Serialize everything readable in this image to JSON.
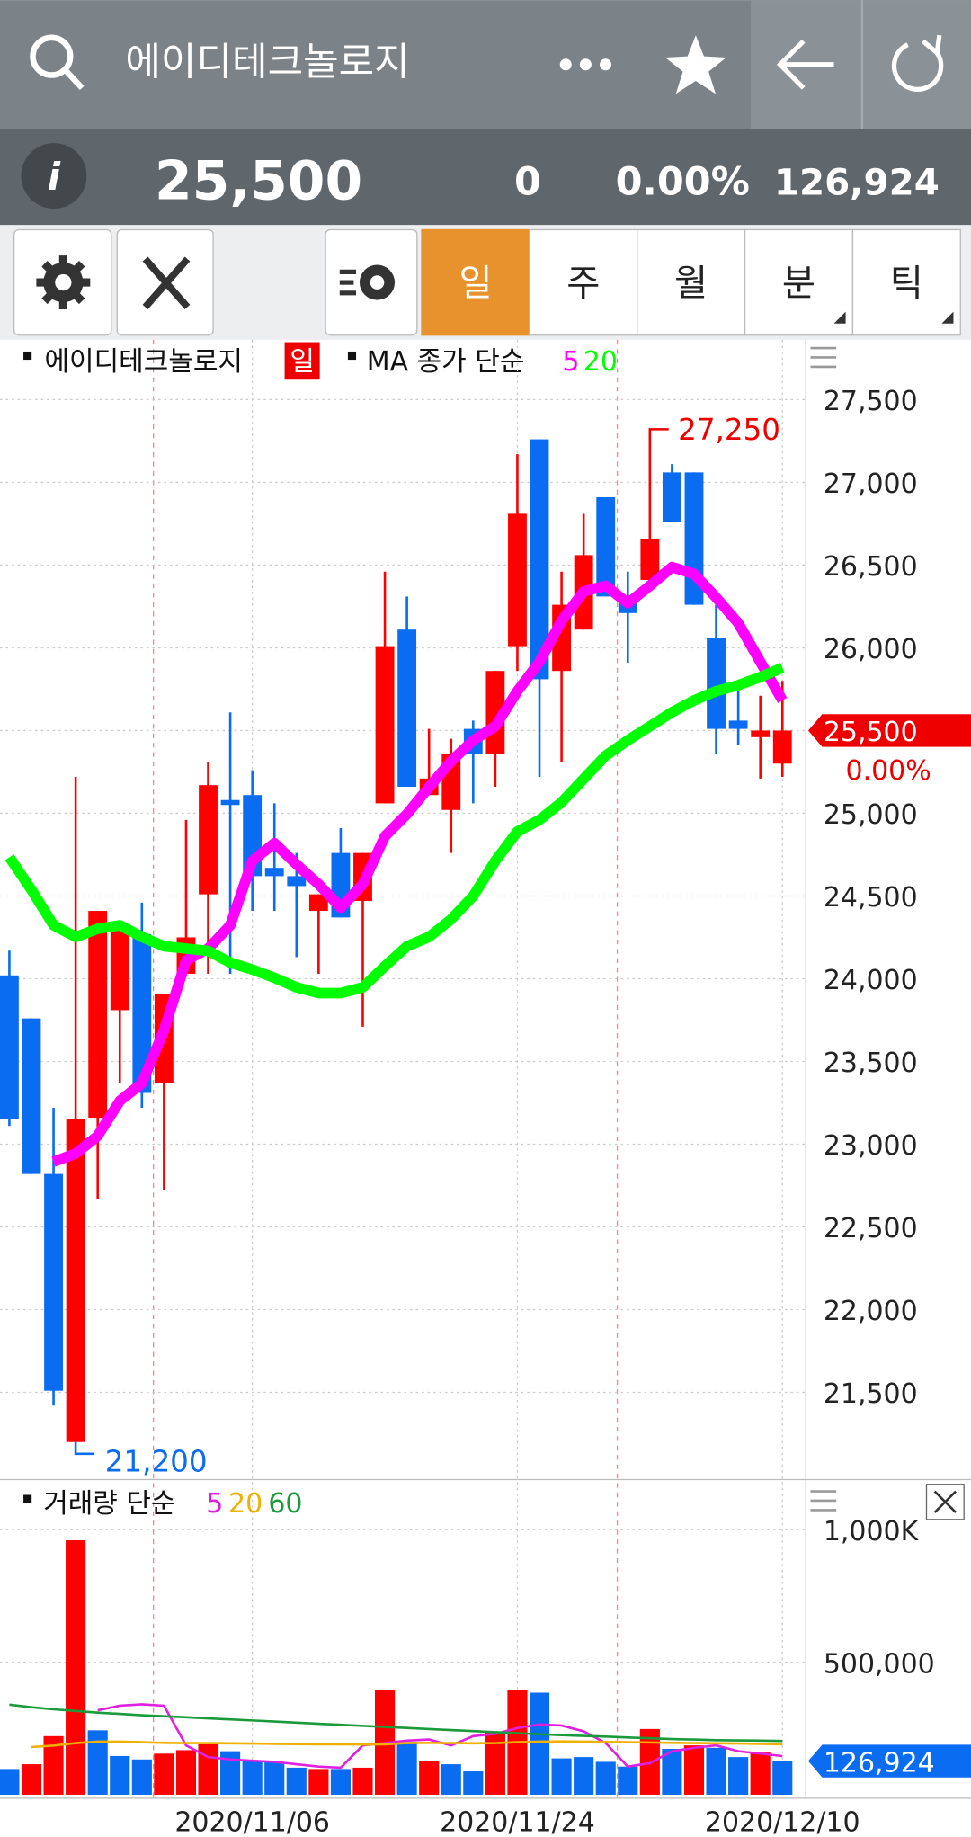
{
  "header": {
    "title": "에이디테크놀로지",
    "price": "25,500",
    "change": "0",
    "change_pct": "0.00%",
    "volume": "126,924"
  },
  "tabs": [
    "일",
    "주",
    "월",
    "분",
    "틱"
  ],
  "chart_data": [
    {
      "type": "candlestick",
      "legend_label": "MA 종가 단순",
      "categories": [
        null,
        null,
        null,
        null,
        null,
        null,
        null,
        null,
        null,
        null,
        null,
        "2020/11/06",
        null,
        null,
        null,
        null,
        null,
        null,
        null,
        null,
        null,
        null,
        null,
        "2020/11/24",
        null,
        null,
        null,
        null,
        null,
        null,
        null,
        null,
        null,
        null,
        null,
        "2020/12/10"
      ],
      "open": [
        24020,
        23760,
        22820,
        21200,
        23160,
        23810,
        24270,
        23370,
        24030,
        24510,
        25080,
        25110,
        24670,
        24620,
        24410,
        24760,
        24470,
        25060,
        26110,
        25110,
        25020,
        25510,
        25360,
        26010,
        27260,
        25860,
        26110,
        26910,
        26310,
        26410,
        27060,
        27060,
        26060,
        25560,
        25460,
        25300
      ],
      "high": [
        24170,
        23760,
        23220,
        25220,
        24410,
        24310,
        24460,
        23910,
        24960,
        25310,
        25610,
        25260,
        25060,
        24760,
        24510,
        24910,
        24760,
        26460,
        26310,
        25510,
        25450,
        25560,
        25860,
        27170,
        27260,
        26460,
        26810,
        26910,
        26460,
        27250,
        27110,
        27060,
        26260,
        25760,
        25710,
        25800
      ],
      "low": [
        23110,
        22820,
        21420,
        21200,
        22670,
        23370,
        23220,
        22720,
        24030,
        24030,
        24030,
        24410,
        24410,
        24130,
        24030,
        24370,
        23710,
        25060,
        25160,
        25110,
        24760,
        25060,
        25160,
        25860,
        25220,
        25310,
        26110,
        26310,
        25910,
        26410,
        26760,
        26260,
        25360,
        25410,
        25210,
        25220
      ],
      "close": [
        23150,
        22820,
        21510,
        23150,
        24410,
        24310,
        23310,
        23910,
        24250,
        25170,
        25050,
        24620,
        24620,
        24560,
        24510,
        24370,
        24760,
        26010,
        25160,
        25210,
        25360,
        25360,
        25860,
        26810,
        25810,
        26260,
        26560,
        26310,
        26210,
        26660,
        26760,
        26260,
        25510,
        25510,
        25500,
        25500
      ],
      "up_color": "#ff0000",
      "down_color": "#0a6cf0",
      "series": [
        {
          "name": "5",
          "color": "#ff00ff",
          "values": [
            null,
            null,
            22894,
            22944,
            23050,
            23262,
            23368,
            23687,
            24111,
            24182,
            24323,
            24712,
            24819,
            24691,
            24571,
            24430,
            24571,
            24861,
            24995,
            25158,
            25314,
            25441,
            25526,
            25738,
            25915,
            26163,
            26340,
            26375,
            26269,
            26375,
            26488,
            26446,
            26304,
            26149,
            25915,
            25682
          ]
        },
        {
          "name": "20",
          "color": "#00ff00",
          "values": [
            24734,
            24536,
            24323,
            24253,
            24302,
            24323,
            24253,
            24196,
            24182,
            24168,
            24097,
            24055,
            24005,
            23948,
            23913,
            23913,
            23948,
            24076,
            24196,
            24253,
            24359,
            24500,
            24712,
            24889,
            24960,
            25066,
            25208,
            25349,
            25441,
            25526,
            25611,
            25682,
            25738,
            25774,
            25823,
            25880
          ]
        }
      ],
      "ylim": [
        20980,
        27840
      ],
      "yticks": [
        {
          "value": 21500,
          "label": "21,500"
        },
        {
          "value": 22000,
          "label": "22,000"
        },
        {
          "value": 22500,
          "label": "22,500"
        },
        {
          "value": 23000,
          "label": "23,000"
        },
        {
          "value": 23500,
          "label": "23,500"
        },
        {
          "value": 24000,
          "label": "24,000"
        },
        {
          "value": 24500,
          "label": "24,500"
        },
        {
          "value": 25000,
          "label": "25,000"
        },
        {
          "value": 25500,
          "label": "25,500"
        },
        {
          "value": 26000,
          "label": "26,000"
        },
        {
          "value": 26500,
          "label": "26,500"
        },
        {
          "value": 27000,
          "label": "27,000"
        },
        {
          "value": 27500,
          "label": "27,500"
        }
      ],
      "high_label": {
        "value": 27250,
        "label": "27,250"
      },
      "low_label": {
        "value": 21200,
        "label": "21,200"
      },
      "last_label": {
        "value": 25500,
        "label": "25,500"
      },
      "grid": true
    },
    {
      "type": "bar",
      "legend_label": "거래량 단순",
      "values": [
        97000,
        115000,
        221000,
        960000,
        243000,
        146000,
        133000,
        155000,
        168000,
        190000,
        164000,
        128000,
        124000,
        102000,
        97000,
        97000,
        102000,
        394000,
        199000,
        128000,
        115000,
        88000,
        235000,
        394000,
        385000,
        137000,
        142000,
        124000,
        106000,
        248000,
        173000,
        186000,
        177000,
        142000,
        159000,
        126924
      ],
      "bar_colors": [
        "#0a6cf0",
        "#ff0000",
        "#ff0000",
        "#ff0000",
        "#0a6cf0",
        "#0a6cf0",
        "#0a6cf0",
        "#ff0000",
        "#ff0000",
        "#ff0000",
        "#0a6cf0",
        "#0a6cf0",
        "#0a6cf0",
        "#0a6cf0",
        "#ff0000",
        "#0a6cf0",
        "#ff0000",
        "#ff0000",
        "#0a6cf0",
        "#ff0000",
        "#0a6cf0",
        "#0a6cf0",
        "#ff0000",
        "#ff0000",
        "#0a6cf0",
        "#0a6cf0",
        "#0a6cf0",
        "#0a6cf0",
        "#0a6cf0",
        "#ff0000",
        "#0a6cf0",
        "#ff0000",
        "#0a6cf0",
        "#0a6cf0",
        "#ff0000",
        "#0a6cf0"
      ],
      "series": [
        {
          "name": "5",
          "color": "#e020e0",
          "values": [
            null,
            null,
            null,
            null,
            318600,
            336000,
            341000,
            336000,
            186000,
            142000,
            133000,
            128000,
            124000,
            115000,
            106000,
            102000,
            186000,
            195000,
            204000,
            208000,
            186000,
            221000,
            230000,
            252000,
            265000,
            261000,
            239000,
            195000,
            106000,
            119000,
            164000,
            177000,
            186000,
            164000,
            155000,
            146000
          ]
        },
        {
          "name": "20",
          "color": "#f0b000",
          "values": [
            null,
            180000,
            185000,
            195000,
            200000,
            200000,
            198000,
            196000,
            195000,
            195000,
            194000,
            193000,
            192000,
            191000,
            190000,
            190000,
            189000,
            190000,
            195000,
            196000,
            195000,
            194000,
            195000,
            198000,
            200000,
            201000,
            200000,
            199000,
            198000,
            197000,
            196000,
            195000,
            194000,
            193000,
            192000,
            190000
          ]
        },
        {
          "name": "60",
          "color": "#1a9a3a",
          "values": [
            340000,
            330000,
            322000,
            316000,
            310000,
            305000,
            300000,
            296000,
            292000,
            288000,
            284000,
            280000,
            276000,
            272000,
            268000,
            264000,
            260000,
            256000,
            252000,
            248000,
            244000,
            240000,
            236000,
            232000,
            228000,
            225000,
            222000,
            219000,
            216000,
            213000,
            210000,
            208000,
            206000,
            205000,
            204000,
            203000
          ]
        }
      ],
      "ylim": [
        0,
        1180000
      ],
      "yticks": [
        {
          "value": 500000,
          "label": "500,000"
        },
        {
          "value": 1000000,
          "label": "1,000K"
        }
      ],
      "last_label": {
        "value": 126924,
        "label": "126,924"
      },
      "grid": true
    }
  ]
}
